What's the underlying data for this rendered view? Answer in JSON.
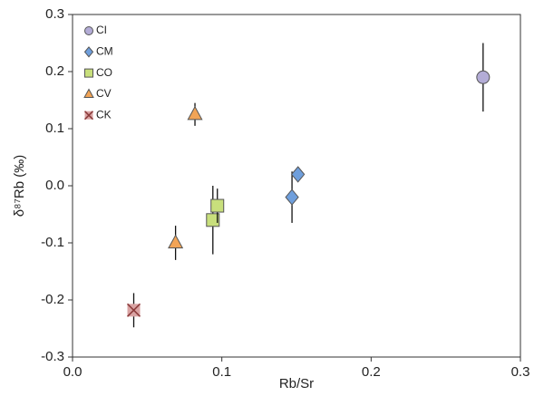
{
  "chart_data": {
    "type": "scatter",
    "xlabel": "Rb/Sr",
    "ylabel": "δ⁸⁷Rb (‰)",
    "xlim": [
      0,
      0.3
    ],
    "ylim": [
      -0.3,
      0.3
    ],
    "xticks": [
      {
        "value": 0,
        "label": "0.0"
      },
      0.1,
      0.2,
      0.3
    ],
    "yticks": [
      -0.3,
      -0.2,
      -0.1,
      {
        "value": 0,
        "label": "0.0"
      },
      0.1,
      0.2,
      0.3
    ],
    "legend": "upper left",
    "series": [
      {
        "name": "CI",
        "color": "#b3acd6",
        "marker": "circle",
        "x": [
          0.275
        ],
        "values": [
          0.19
        ],
        "errors": [
          0.06
        ]
      },
      {
        "name": "CM",
        "color": "#6f9fdc",
        "marker": "diamond",
        "x": [
          0.147,
          0.151
        ],
        "values": [
          -0.02,
          0.02
        ],
        "errors": [
          0.045,
          0.01
        ]
      },
      {
        "name": "CO",
        "color": "#c8df7c",
        "marker": "square",
        "x": [
          0.094,
          0.097
        ],
        "values": [
          -0.06,
          -0.035
        ],
        "errors": [
          0.06,
          0.03
        ]
      },
      {
        "name": "CV",
        "color": "#f2a456",
        "marker": "triangle",
        "x": [
          0.082,
          0.069
        ],
        "values": [
          0.125,
          -0.1
        ],
        "errors": [
          0.02,
          0.03
        ]
      },
      {
        "name": "CK",
        "color": "#d9a3a3",
        "marker": "x",
        "x": [
          0.041
        ],
        "values": [
          -0.218
        ],
        "errors": [
          0.03
        ]
      }
    ]
  }
}
